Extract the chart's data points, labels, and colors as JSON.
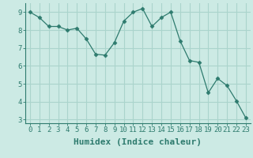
{
  "x": [
    0,
    1,
    2,
    3,
    4,
    5,
    6,
    7,
    8,
    9,
    10,
    11,
    12,
    13,
    14,
    15,
    16,
    17,
    18,
    19,
    20,
    21,
    22,
    23
  ],
  "y": [
    9.0,
    8.7,
    8.2,
    8.2,
    8.0,
    8.1,
    7.5,
    6.65,
    6.6,
    7.3,
    8.5,
    9.0,
    9.2,
    8.2,
    8.7,
    9.0,
    7.4,
    6.3,
    6.2,
    4.5,
    5.3,
    4.9,
    4.05,
    3.1
  ],
  "line_color": "#2e7b6e",
  "marker": "D",
  "marker_size": 2.5,
  "bg_color": "#cceae4",
  "grid_color": "#aad4cc",
  "xlabel": "Humidex (Indice chaleur)",
  "xlim": [
    -0.5,
    23.5
  ],
  "ylim": [
    2.8,
    9.5
  ],
  "xticks": [
    0,
    1,
    2,
    3,
    4,
    5,
    6,
    7,
    8,
    9,
    10,
    11,
    12,
    13,
    14,
    15,
    16,
    17,
    18,
    19,
    20,
    21,
    22,
    23
  ],
  "yticks": [
    3,
    4,
    5,
    6,
    7,
    8,
    9
  ],
  "tick_fontsize": 6.5,
  "label_fontsize": 8.0,
  "spine_color": "#2e7b6e"
}
